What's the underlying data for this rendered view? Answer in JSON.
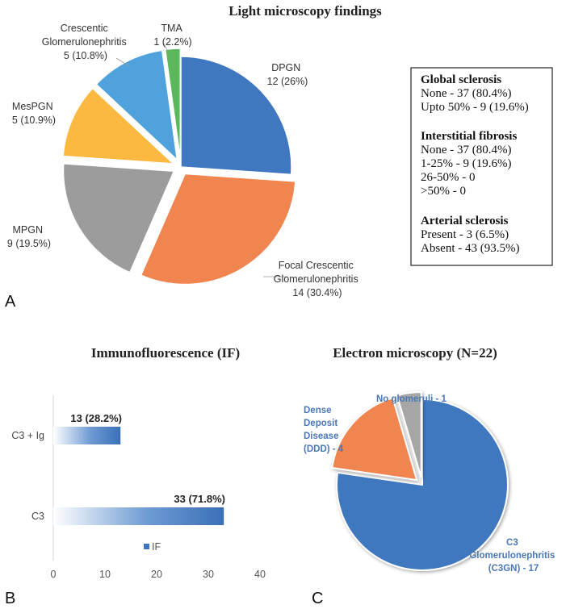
{
  "panels": {
    "a": "A",
    "b": "B",
    "c": "C"
  },
  "chart_data": [
    {
      "type": "pie",
      "title": "Light microscopy findings",
      "slices": [
        {
          "name": "DPGN",
          "count": 12,
          "pct": "26%",
          "color": "#3f78c0",
          "exploded": false
        },
        {
          "name": "Focal Crescentic Glomerulonephritis",
          "count": 14,
          "pct": "30.4%",
          "color": "#f08550",
          "exploded": true
        },
        {
          "name": "MPGN",
          "count": 9,
          "pct": "19.5%",
          "color": "#9c9c9c",
          "exploded": true
        },
        {
          "name": "MesPGN",
          "count": 5,
          "pct": "10.9%",
          "color": "#fbb941",
          "exploded": true
        },
        {
          "name": "Crescentic Glomerulonephritis",
          "count": 5,
          "pct": "10.8%",
          "color": "#4fa2dc",
          "exploded": true
        },
        {
          "name": "TMA",
          "count": 1,
          "pct": "2.2%",
          "color": "#5cb85c",
          "exploded": true
        }
      ],
      "labels": {
        "dpgn": [
          "DPGN",
          "12 (26%)"
        ],
        "focal": [
          "Focal Crescentic",
          "Glomerulonephritis",
          "14 (30.4%)"
        ],
        "mpgn": [
          "MPGN",
          "9 (19.5%)"
        ],
        "mespgn": [
          "MesPGN",
          "5 (10.9%)"
        ],
        "crescentic": [
          "Crescentic",
          "Glomerulonephritis",
          "5 (10.8%)"
        ],
        "tma": [
          "TMA",
          "1 (2.2%)"
        ]
      },
      "summary_box": {
        "sections": [
          {
            "heading": "Global sclerosis",
            "items": [
              "None - 37 (80.4%)",
              "Upto 50% - 9 (19.6%)"
            ]
          },
          {
            "heading": "Interstitial fibrosis",
            "items": [
              "None - 37 (80.4%)",
              "1-25% - 9 (19.6%)",
              "26-50% - 0",
              ">50% -  0"
            ]
          },
          {
            "heading": "Arterial sclerosis",
            "items": [
              "Present - 3 (6.5%)",
              "Absent - 43 (93.5%)"
            ]
          }
        ]
      }
    },
    {
      "type": "bar",
      "orientation": "horizontal",
      "title": "Immunofluorescence (IF)",
      "categories": [
        "C3 + Ig",
        "C3"
      ],
      "values": [
        13,
        33
      ],
      "data_labels": [
        "13 (28.2%)",
        "33 (71.8%)"
      ],
      "xlim": [
        0,
        40
      ],
      "xticks": [
        0,
        10,
        20,
        30,
        40
      ],
      "legend": "IF",
      "color": "#3f78c0"
    },
    {
      "type": "pie",
      "title": "Electron microscopy (N=22)",
      "slices": [
        {
          "name": "C3 Glomerulonephritis (C3GN)",
          "value": 17,
          "color": "#3f78c0",
          "exploded": false
        },
        {
          "name": "Dense Deposit Disease (DDD)",
          "value": 4,
          "color": "#f08550",
          "exploded": true
        },
        {
          "name": "No glomeruli",
          "value": 1,
          "color": "#a6a6a6",
          "exploded": true
        }
      ],
      "labels": {
        "c3gn": [
          "C3",
          "Glomerulonephritis",
          "(C3GN) - 17"
        ],
        "ddd": [
          "Dense",
          "Deposit",
          "Disease",
          "(DDD) - 4"
        ],
        "none": [
          "No glomeruli - 1"
        ]
      }
    }
  ]
}
